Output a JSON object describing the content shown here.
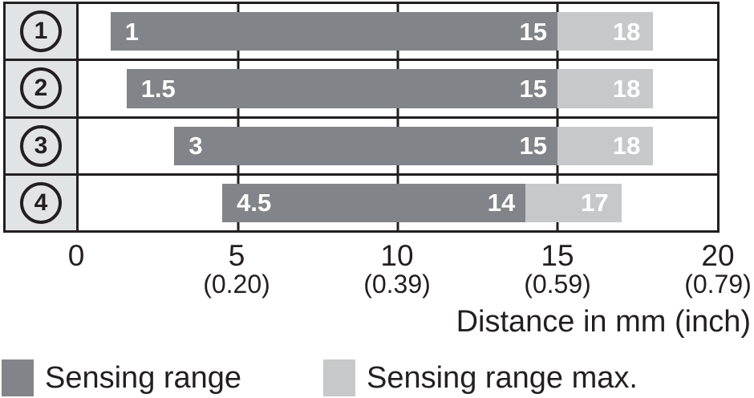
{
  "chart_data": {
    "type": "bar",
    "orientation": "horizontal",
    "title": "",
    "xlabel": "Distance in mm (inch)",
    "xlim": [
      0,
      20
    ],
    "grid": "vertical gridlines at 5, 10, 15 mm",
    "x_ticks": [
      {
        "mm": 0,
        "label": "0",
        "inch": ""
      },
      {
        "mm": 5,
        "label": "5",
        "inch": "(0.20)"
      },
      {
        "mm": 10,
        "label": "10",
        "inch": "(0.39)"
      },
      {
        "mm": 15,
        "label": "15",
        "inch": "(0.59)"
      },
      {
        "mm": 20,
        "label": "20",
        "inch": "(0.79)"
      }
    ],
    "rows": [
      {
        "id": "1",
        "start": 1,
        "range_end": 15,
        "max_end": 18
      },
      {
        "id": "2",
        "start": 1.5,
        "range_end": 15,
        "max_end": 18
      },
      {
        "id": "3",
        "start": 3,
        "range_end": 15,
        "max_end": 18
      },
      {
        "id": "4",
        "start": 4.5,
        "range_end": 14,
        "max_end": 17
      }
    ],
    "legend": [
      {
        "label": "Sensing range",
        "color": "#818488"
      },
      {
        "label": "Sensing range max.",
        "color": "#c6c8ca"
      }
    ]
  },
  "colors": {
    "row_header_bg": "#e2e3e4",
    "border": "#231f20",
    "bar_label_text": "#ffffff"
  }
}
